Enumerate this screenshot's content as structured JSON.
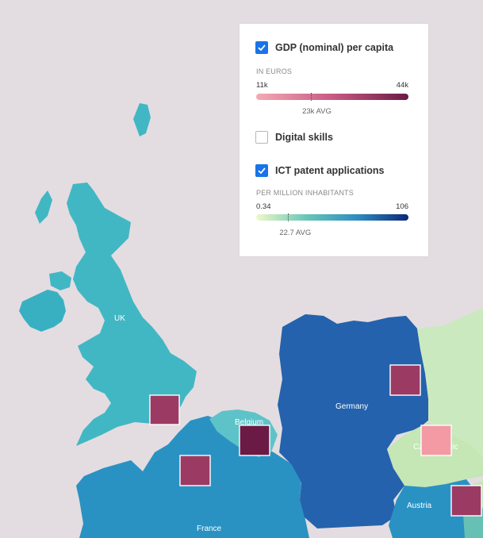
{
  "map": {
    "labels": {
      "uk": "UK",
      "belgium": "Belgium",
      "germany": "Germany",
      "france": "France",
      "austria": "Austria",
      "czech": "Cz",
      "czech_suffix": "ublic"
    },
    "colors": {
      "background": "#e3dde1",
      "uk": "#42b7c4",
      "ireland": "#38b0c2",
      "germany": "#2562ad",
      "france": "#2a92c3",
      "belgium": "#5ec3c8",
      "austria": "#2a92c3",
      "poland": "#cbe9bf",
      "czech": "#c5e6b5",
      "gdp_square_medium": "#9b3a63",
      "gdp_square_high": "#6b1a45",
      "gdp_square_low": "#f39aa4"
    }
  },
  "legend": {
    "gdp": {
      "label": "GDP (nominal) per capita",
      "checked": true,
      "unit": "IN EUROS",
      "min": "11k",
      "max": "44k",
      "avg": "23k AVG",
      "avg_fraction": 0.36
    },
    "digital": {
      "label": "Digital skills",
      "checked": false
    },
    "ict": {
      "label": "ICT patent applications",
      "checked": true,
      "unit": "PER MILLION INHABITANTS",
      "min": "0.34",
      "max": "106",
      "avg": "22.7 AVG",
      "avg_fraction": 0.21
    }
  }
}
